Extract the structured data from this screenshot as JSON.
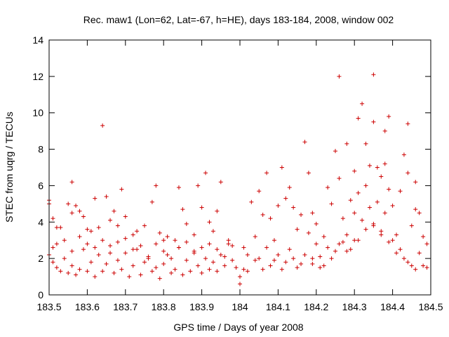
{
  "chart_data": {
    "type": "scatter",
    "title": "Rec. maw1 (Lon=62, Lat=-67, h=HE), days 183-184, 2008, window 002",
    "xlabel": "GPS time / Days of year 2008",
    "ylabel": "STEC from uqrg / TECUs",
    "xlim": [
      183.5,
      184.5
    ],
    "ylim": [
      0,
      14
    ],
    "x_ticks": [
      "183.5",
      "183.6",
      "183.7",
      "183.8",
      "183.9",
      "184",
      "184.1",
      "184.2",
      "184.3",
      "184.4",
      "184.5"
    ],
    "y_ticks": [
      "0",
      "2",
      "4",
      "6",
      "8",
      "10",
      "12",
      "14"
    ],
    "marker": "+",
    "color": "#cc0000",
    "series": [
      {
        "name": "STEC",
        "points": [
          [
            183.5,
            5.2
          ],
          [
            183.5,
            5.0
          ],
          [
            183.51,
            4.2
          ],
          [
            183.52,
            3.7
          ],
          [
            183.53,
            3.7
          ],
          [
            183.55,
            5.0
          ],
          [
            183.56,
            4.5
          ],
          [
            183.56,
            6.2
          ],
          [
            183.57,
            4.9
          ],
          [
            183.58,
            4.6
          ],
          [
            183.59,
            4.3
          ],
          [
            183.6,
            3.6
          ],
          [
            183.61,
            3.5
          ],
          [
            183.62,
            5.3
          ],
          [
            183.63,
            3.7
          ],
          [
            183.64,
            9.3
          ],
          [
            183.65,
            5.4
          ],
          [
            183.66,
            4.1
          ],
          [
            183.67,
            4.6
          ],
          [
            183.68,
            3.8
          ],
          [
            183.69,
            5.8
          ],
          [
            183.7,
            4.3
          ],
          [
            183.72,
            3.3
          ],
          [
            183.73,
            3.5
          ],
          [
            183.75,
            3.8
          ],
          [
            183.77,
            5.1
          ],
          [
            183.78,
            6.0
          ],
          [
            183.79,
            3.4
          ],
          [
            183.8,
            3.0
          ],
          [
            183.81,
            3.2
          ],
          [
            183.83,
            3.0
          ],
          [
            183.84,
            5.9
          ],
          [
            183.85,
            4.7
          ],
          [
            183.86,
            3.9
          ],
          [
            183.88,
            3.3
          ],
          [
            183.89,
            6.0
          ],
          [
            183.9,
            4.8
          ],
          [
            183.91,
            6.7
          ],
          [
            183.92,
            4.0
          ],
          [
            183.93,
            3.5
          ],
          [
            183.94,
            4.6
          ],
          [
            183.95,
            6.2
          ],
          [
            183.97,
            3.0
          ],
          [
            183.98,
            2.7
          ],
          [
            183.5,
            2.2
          ],
          [
            183.51,
            1.8
          ],
          [
            183.51,
            2.6
          ],
          [
            183.52,
            1.5
          ],
          [
            183.53,
            1.3
          ],
          [
            183.54,
            2.0
          ],
          [
            183.55,
            1.2
          ],
          [
            183.56,
            1.6
          ],
          [
            183.57,
            1.1
          ],
          [
            183.58,
            1.4
          ],
          [
            183.59,
            2.5
          ],
          [
            183.6,
            1.3
          ],
          [
            183.61,
            1.8
          ],
          [
            183.62,
            1.0
          ],
          [
            183.63,
            2.2
          ],
          [
            183.64,
            1.3
          ],
          [
            183.65,
            1.7
          ],
          [
            183.66,
            2.7
          ],
          [
            183.67,
            1.2
          ],
          [
            183.68,
            1.9
          ],
          [
            183.69,
            1.4
          ],
          [
            183.7,
            2.3
          ],
          [
            183.71,
            1.0
          ],
          [
            183.72,
            1.6
          ],
          [
            183.73,
            2.5
          ],
          [
            183.74,
            1.1
          ],
          [
            183.75,
            1.8
          ],
          [
            183.76,
            2.0
          ],
          [
            183.77,
            1.3
          ],
          [
            183.78,
            1.5
          ],
          [
            183.79,
            0.9
          ],
          [
            183.8,
            1.7
          ],
          [
            183.81,
            2.2
          ],
          [
            183.82,
            1.2
          ],
          [
            183.83,
            1.4
          ],
          [
            183.84,
            2.6
          ],
          [
            183.85,
            1.1
          ],
          [
            183.86,
            1.9
          ],
          [
            183.87,
            1.3
          ],
          [
            183.88,
            2.4
          ],
          [
            183.89,
            1.6
          ],
          [
            183.9,
            1.2
          ],
          [
            183.91,
            2.0
          ],
          [
            183.92,
            1.4
          ],
          [
            183.93,
            1.8
          ],
          [
            183.94,
            1.3
          ],
          [
            183.95,
            2.2
          ],
          [
            183.96,
            1.6
          ],
          [
            183.97,
            2.8
          ],
          [
            183.98,
            1.9
          ],
          [
            183.99,
            1.5
          ],
          [
            183.52,
            2.8
          ],
          [
            183.54,
            3.0
          ],
          [
            183.56,
            2.4
          ],
          [
            183.58,
            3.2
          ],
          [
            183.6,
            2.8
          ],
          [
            183.62,
            2.6
          ],
          [
            183.64,
            3.0
          ],
          [
            183.66,
            2.3
          ],
          [
            183.68,
            2.9
          ],
          [
            183.7,
            3.1
          ],
          [
            183.72,
            2.5
          ],
          [
            183.74,
            2.7
          ],
          [
            183.76,
            2.1
          ],
          [
            183.78,
            2.8
          ],
          [
            183.8,
            2.4
          ],
          [
            183.82,
            2.0
          ],
          [
            183.84,
            2.6
          ],
          [
            183.86,
            2.9
          ],
          [
            183.88,
            2.3
          ],
          [
            183.9,
            2.6
          ],
          [
            183.92,
            2.8
          ],
          [
            183.94,
            2.5
          ],
          [
            183.96,
            2.1
          ],
          [
            184.0,
            0.6
          ],
          [
            184.0,
            1.0
          ],
          [
            184.01,
            1.4
          ],
          [
            184.01,
            2.6
          ],
          [
            184.02,
            2.2
          ],
          [
            184.03,
            5.1
          ],
          [
            184.04,
            3.2
          ],
          [
            184.05,
            5.7
          ],
          [
            184.05,
            2.0
          ],
          [
            184.06,
            4.4
          ],
          [
            184.07,
            6.7
          ],
          [
            184.07,
            2.6
          ],
          [
            184.08,
            4.2
          ],
          [
            184.08,
            1.6
          ],
          [
            184.09,
            3.0
          ],
          [
            184.1,
            4.9
          ],
          [
            184.1,
            2.2
          ],
          [
            184.11,
            7.0
          ],
          [
            184.12,
            5.3
          ],
          [
            184.12,
            1.8
          ],
          [
            184.13,
            5.9
          ],
          [
            184.13,
            2.5
          ],
          [
            184.14,
            4.8
          ],
          [
            184.15,
            3.6
          ],
          [
            184.15,
            1.5
          ],
          [
            184.16,
            4.4
          ],
          [
            184.17,
            8.4
          ],
          [
            184.17,
            2.2
          ],
          [
            184.18,
            6.7
          ],
          [
            184.18,
            3.4
          ],
          [
            184.19,
            4.5
          ],
          [
            184.19,
            1.7
          ],
          [
            184.2,
            2.8
          ],
          [
            184.2,
            3.9
          ],
          [
            184.21,
            2.1
          ],
          [
            184.22,
            3.2
          ],
          [
            184.22,
            1.6
          ],
          [
            184.23,
            5.9
          ],
          [
            184.23,
            2.6
          ],
          [
            184.24,
            5.0
          ],
          [
            184.25,
            7.9
          ],
          [
            184.25,
            2.4
          ],
          [
            184.26,
            12.0
          ],
          [
            184.26,
            6.4
          ],
          [
            184.27,
            4.2
          ],
          [
            184.27,
            2.9
          ],
          [
            184.28,
            8.3
          ],
          [
            184.28,
            3.3
          ],
          [
            184.29,
            5.2
          ],
          [
            184.29,
            2.5
          ],
          [
            184.3,
            6.8
          ],
          [
            184.3,
            4.5
          ],
          [
            184.3,
            3.0
          ],
          [
            184.31,
            9.7
          ],
          [
            184.31,
            5.6
          ],
          [
            184.32,
            10.5
          ],
          [
            184.32,
            4.1
          ],
          [
            184.33,
            8.3
          ],
          [
            184.33,
            6.0
          ],
          [
            184.34,
            7.1
          ],
          [
            184.34,
            4.8
          ],
          [
            184.35,
            12.1
          ],
          [
            184.35,
            9.5
          ],
          [
            184.35,
            3.8
          ],
          [
            184.36,
            7.0
          ],
          [
            184.36,
            5.1
          ],
          [
            184.37,
            6.5
          ],
          [
            184.37,
            3.5
          ],
          [
            184.38,
            9.0
          ],
          [
            184.38,
            7.2
          ],
          [
            184.38,
            4.5
          ],
          [
            184.39,
            9.8
          ],
          [
            184.39,
            5.8
          ],
          [
            184.4,
            4.9
          ],
          [
            184.4,
            3.0
          ],
          [
            184.41,
            3.3
          ],
          [
            184.42,
            5.7
          ],
          [
            184.42,
            2.5
          ],
          [
            184.43,
            7.7
          ],
          [
            184.43,
            2.0
          ],
          [
            184.44,
            9.4
          ],
          [
            184.44,
            6.7
          ],
          [
            184.45,
            3.8
          ],
          [
            184.45,
            1.6
          ],
          [
            184.46,
            6.2
          ],
          [
            184.46,
            4.7
          ],
          [
            184.47,
            4.5
          ],
          [
            184.47,
            2.3
          ],
          [
            184.48,
            3.2
          ],
          [
            184.49,
            2.8
          ],
          [
            184.49,
            1.5
          ],
          [
            184.02,
            1.3
          ],
          [
            184.04,
            1.9
          ],
          [
            184.06,
            1.4
          ],
          [
            184.09,
            1.9
          ],
          [
            184.11,
            1.4
          ],
          [
            184.14,
            2.0
          ],
          [
            184.16,
            1.7
          ],
          [
            184.19,
            2.0
          ],
          [
            184.21,
            1.5
          ],
          [
            184.24,
            2.0
          ],
          [
            184.26,
            2.8
          ],
          [
            184.28,
            2.4
          ],
          [
            184.31,
            3.0
          ],
          [
            184.33,
            3.6
          ],
          [
            184.35,
            3.9
          ],
          [
            184.37,
            3.3
          ],
          [
            184.39,
            2.9
          ],
          [
            184.41,
            2.3
          ],
          [
            184.44,
            1.8
          ],
          [
            184.46,
            1.4
          ],
          [
            184.48,
            1.6
          ]
        ]
      }
    ]
  }
}
